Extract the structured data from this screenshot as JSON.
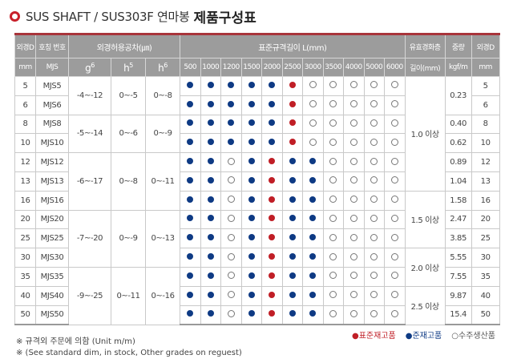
{
  "title": {
    "main": "SUS SHAFT / SUS303F 연마봉",
    "bold": "제품구성표"
  },
  "colors": {
    "accent": "#c8202a",
    "standard_stock": "#c01e26",
    "stock": "#0e3a84"
  },
  "header": {
    "od": "외경D",
    "nominal": "호칭 번호",
    "tolerance": "외경허용공차(㎛)",
    "length": "표준규격길이 L(mm)",
    "hardening": "유효경화층",
    "weight": "중량",
    "od2": "외경D",
    "mm": "mm",
    "mjs": "MJS",
    "g6": "g",
    "g6sup": "6",
    "h5": "h",
    "h5sup": "5",
    "h6": "h",
    "h6sup": "6",
    "lengths": [
      "500",
      "1000",
      "1200",
      "1500",
      "2000",
      "2500",
      "3000",
      "3500",
      "4000",
      "5000",
      "6000"
    ],
    "depth": "길이(mm)",
    "kgfm": "kgf/m",
    "mm2": "mm"
  },
  "rows": [
    {
      "d": "5",
      "mjs": "MJS5",
      "dots": "BBBBBROOOOO"
    },
    {
      "d": "6",
      "mjs": "MJS6",
      "dots": "BBBBBROOOOO"
    },
    {
      "d": "8",
      "mjs": "MJS8",
      "dots": "BBBBBROOOOO"
    },
    {
      "d": "10",
      "mjs": "MJS10",
      "dots": "BBBBBROOOOO"
    },
    {
      "d": "12",
      "mjs": "MJS12",
      "dots": "BBOBRBBOOOO"
    },
    {
      "d": "13",
      "mjs": "MJS13",
      "dots": "BBOBRBBOOOO"
    },
    {
      "d": "16",
      "mjs": "MJS16",
      "dots": "BBOBRBBOOOO"
    },
    {
      "d": "20",
      "mjs": "MJS20",
      "dots": "BBOBRBBOOOO"
    },
    {
      "d": "25",
      "mjs": "MJS25",
      "dots": "BBOBRBBOOOO"
    },
    {
      "d": "30",
      "mjs": "MJS30",
      "dots": "BBOBRBBOOOO"
    },
    {
      "d": "35",
      "mjs": "MJS35",
      "dots": "BBOBRBBOOOO"
    },
    {
      "d": "40",
      "mjs": "MJS40",
      "dots": "BBOBRBBOOOO"
    },
    {
      "d": "50",
      "mjs": "MJS50",
      "dots": "BBOBRBBOOOO"
    }
  ],
  "tolerance_groups": [
    {
      "rows": 2,
      "g6": "-4~-12",
      "h5": "0~-5",
      "h6": "0~-8"
    },
    {
      "rows": 2,
      "g6": "-5~-14",
      "h5": "0~-6",
      "h6": "0~-9"
    },
    {
      "rows": 3,
      "g6": "-6~-17",
      "h5": "0~-8",
      "h6": "0~-11"
    },
    {
      "rows": 3,
      "g6": "-7~-20",
      "h5": "0~-9",
      "h6": "0~-13"
    },
    {
      "rows": 3,
      "g6": "-9~-25",
      "h5": "0~-11",
      "h6": "0~-16"
    }
  ],
  "hardening_groups": [
    {
      "rows": 6,
      "v": "1.0 이상"
    },
    {
      "rows": 3,
      "v": "1.5 이상"
    },
    {
      "rows": 2,
      "v": "2.0 이상"
    },
    {
      "rows": 2,
      "v": "2.5 이상"
    }
  ],
  "weight_groups": [
    {
      "rows": 2,
      "v": "0.23"
    },
    {
      "rows": 1,
      "v": "0.40"
    },
    {
      "rows": 1,
      "v": "0.62"
    },
    {
      "rows": 1,
      "v": "0.89"
    },
    {
      "rows": 1,
      "v": "1.04"
    },
    {
      "rows": 1,
      "v": "1.58"
    },
    {
      "rows": 1,
      "v": "2.47"
    },
    {
      "rows": 1,
      "v": "3.85"
    },
    {
      "rows": 1,
      "v": "5.55"
    },
    {
      "rows": 1,
      "v": "7.55"
    },
    {
      "rows": 1,
      "v": "9.87"
    },
    {
      "rows": 1,
      "v": "15.4"
    }
  ],
  "legend": {
    "red": "●표준재고품",
    "blue": "●준재고품",
    "open": "○수주생산품"
  },
  "notes": [
    "※ 규격외 주문에 의함 (Unit m/m)",
    "※ (See standard dim, in stock, Other grades on reguest)"
  ]
}
